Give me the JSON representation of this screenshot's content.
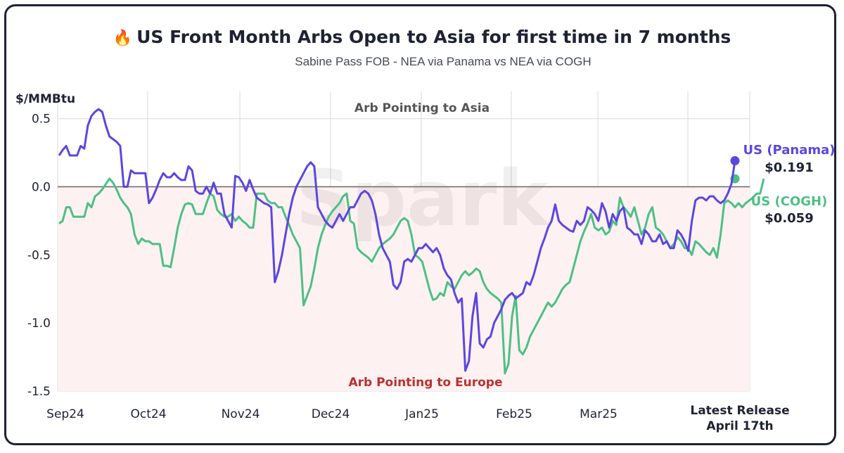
{
  "header": {
    "title": "US Front Month Arbs Open to Asia for first time in 7 months",
    "flame_icon": "fire-icon",
    "subtitle": "Sabine Pass FOB - NEA via Panama vs NEA via COGH"
  },
  "chart_data": {
    "type": "line",
    "ylabel": "$/MMBtu",
    "ylim": [
      -1.5,
      0.7
    ],
    "yticks": [
      "0.5",
      "0.0",
      "-0.5",
      "-1.0",
      "-1.5"
    ],
    "ytick_values": [
      0.5,
      0.0,
      -0.5,
      -1.0,
      -1.5
    ],
    "xticks": [
      "Sep24",
      "Oct24",
      "Nov24",
      "Dec24",
      "Jan25",
      "Feb25",
      "Mar25"
    ],
    "xticks_last": [
      "Latest Release",
      "April 17th"
    ],
    "grid": true,
    "annotation_top": "Arb Pointing to Asia",
    "annotation_bottom": "Arb Pointing to Europe",
    "watermark": "Spark",
    "colors": {
      "panama": "#5b46e0",
      "cogh": "#4dbf86",
      "europe_shade": "#fdf1f1",
      "europe_text": "#b83232",
      "zero_line": "#666666"
    },
    "series": [
      {
        "name": "US (Panama)",
        "end_label": "$0.191",
        "values": [
          0.23,
          0.27,
          0.3,
          0.23,
          0.23,
          0.23,
          0.3,
          0.28,
          0.45,
          0.52,
          0.55,
          0.57,
          0.55,
          0.45,
          0.37,
          0.35,
          0.33,
          0.3,
          0.0,
          0.0,
          0.12,
          0.1,
          0.1,
          0.1,
          0.1,
          -0.12,
          -0.08,
          -0.02,
          0.05,
          0.1,
          0.07,
          0.07,
          0.1,
          0.07,
          0.05,
          0.05,
          0.15,
          0.12,
          -0.03,
          -0.05,
          -0.05,
          0.0,
          -0.05,
          0.03,
          -0.05,
          -0.05,
          -0.2,
          -0.25,
          -0.3,
          0.08,
          0.07,
          0.03,
          -0.03,
          0.05,
          -0.02,
          -0.08,
          -0.1,
          -0.12,
          -0.13,
          -0.15,
          -0.7,
          -0.62,
          -0.5,
          -0.35,
          -0.2,
          -0.08,
          0.0,
          0.05,
          0.1,
          0.15,
          0.18,
          0.15,
          -0.15,
          -0.2,
          -0.25,
          -0.28,
          -0.3,
          -0.25,
          -0.2,
          -0.25,
          -0.2,
          -0.15,
          -0.15,
          -0.1,
          -0.05,
          -0.03,
          -0.05,
          -0.1,
          -0.2,
          -0.35,
          -0.45,
          -0.5,
          -0.55,
          -0.72,
          -0.75,
          -0.7,
          -0.55,
          -0.53,
          -0.55,
          -0.5,
          -0.45,
          -0.45,
          -0.42,
          -0.45,
          -0.48,
          -0.45,
          -0.5,
          -0.6,
          -0.65,
          -0.68,
          -0.78,
          -0.85,
          -0.82,
          -1.35,
          -1.28,
          -0.95,
          -0.78,
          -1.15,
          -1.18,
          -1.12,
          -1.1,
          -1.0,
          -0.95,
          -0.9,
          -0.83,
          -0.8,
          -0.78,
          -0.82,
          -0.8,
          -0.78,
          -0.7,
          -0.72,
          -0.65,
          -0.55,
          -0.45,
          -0.38,
          -0.3,
          -0.25,
          -0.13,
          -0.25,
          -0.28,
          -0.3,
          -0.32,
          -0.33,
          -0.25,
          -0.28,
          -0.25,
          -0.15,
          -0.17,
          -0.2,
          -0.25,
          -0.12,
          -0.18,
          -0.3,
          -0.2,
          -0.25,
          -0.18,
          -0.15,
          -0.3,
          -0.32,
          -0.35,
          -0.35,
          -0.42,
          -0.32,
          -0.35,
          -0.4,
          -0.4,
          -0.35,
          -0.42,
          -0.4,
          -0.45,
          -0.45,
          -0.32,
          -0.35,
          -0.4,
          -0.47,
          -0.25,
          -0.1,
          -0.08,
          -0.08,
          -0.1,
          -0.07,
          -0.07,
          -0.1,
          -0.12,
          -0.1,
          -0.05,
          0.02,
          0.191
        ]
      },
      {
        "name": "US (COGH)",
        "end_label": "$0.059",
        "values": [
          -0.27,
          -0.25,
          -0.15,
          -0.15,
          -0.22,
          -0.22,
          -0.22,
          -0.22,
          -0.12,
          -0.15,
          -0.07,
          -0.05,
          -0.02,
          0.02,
          0.06,
          0.03,
          -0.02,
          -0.08,
          -0.12,
          -0.15,
          -0.2,
          -0.35,
          -0.42,
          -0.38,
          -0.4,
          -0.4,
          -0.42,
          -0.42,
          -0.42,
          -0.58,
          -0.58,
          -0.59,
          -0.45,
          -0.3,
          -0.2,
          -0.13,
          -0.12,
          -0.13,
          -0.2,
          -0.2,
          -0.2,
          -0.12,
          -0.05,
          -0.07,
          -0.17,
          -0.2,
          -0.22,
          -0.22,
          -0.2,
          -0.25,
          -0.22,
          -0.25,
          -0.27,
          -0.3,
          -0.3,
          -0.05,
          -0.05,
          -0.05,
          -0.1,
          -0.12,
          -0.12,
          -0.15,
          -0.15,
          -0.22,
          -0.28,
          -0.35,
          -0.4,
          -0.45,
          -0.87,
          -0.8,
          -0.73,
          -0.6,
          -0.45,
          -0.35,
          -0.28,
          -0.22,
          -0.18,
          -0.15,
          -0.12,
          -0.07,
          -0.05,
          -0.25,
          -0.27,
          -0.45,
          -0.48,
          -0.5,
          -0.52,
          -0.55,
          -0.5,
          -0.45,
          -0.42,
          -0.4,
          -0.38,
          -0.35,
          -0.3,
          -0.25,
          -0.23,
          -0.25,
          -0.35,
          -0.5,
          -0.52,
          -0.55,
          -0.65,
          -0.75,
          -0.83,
          -0.82,
          -0.78,
          -0.8,
          -0.7,
          -0.73,
          -0.75,
          -0.7,
          -0.65,
          -0.62,
          -0.65,
          -0.63,
          -0.6,
          -0.62,
          -0.7,
          -0.75,
          -0.78,
          -0.8,
          -0.82,
          -0.85,
          -1.37,
          -1.3,
          -0.95,
          -0.8,
          -1.2,
          -1.23,
          -1.18,
          -1.1,
          -1.05,
          -1.0,
          -0.95,
          -0.9,
          -0.85,
          -0.88,
          -0.85,
          -0.8,
          -0.75,
          -0.72,
          -0.7,
          -0.6,
          -0.5,
          -0.4,
          -0.33,
          -0.27,
          -0.2,
          -0.3,
          -0.32,
          -0.3,
          -0.35,
          -0.33,
          -0.25,
          -0.28,
          -0.08,
          -0.15,
          -0.18,
          -0.22,
          -0.15,
          -0.25,
          -0.35,
          -0.3,
          -0.2,
          -0.15,
          -0.3,
          -0.32,
          -0.35,
          -0.4,
          -0.45,
          -0.42,
          -0.37,
          -0.4,
          -0.45,
          -0.45,
          -0.5,
          -0.4,
          -0.42,
          -0.45,
          -0.48,
          -0.5,
          -0.45,
          -0.52,
          -0.35,
          -0.12,
          -0.1,
          -0.12,
          -0.15,
          -0.12,
          -0.15,
          -0.12,
          -0.1,
          -0.08,
          -0.05,
          -0.05,
          0.059
        ]
      }
    ]
  }
}
